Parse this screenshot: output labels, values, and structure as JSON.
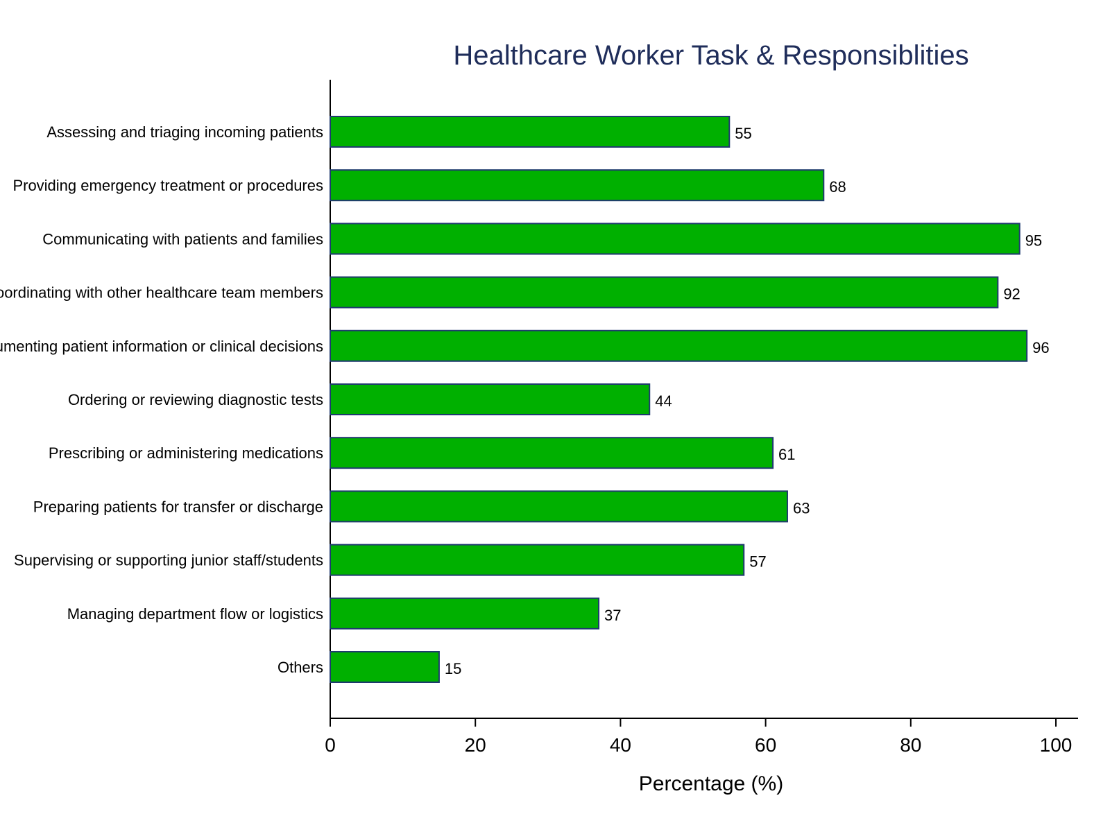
{
  "chart_data": {
    "type": "bar",
    "orientation": "horizontal",
    "title": "Healthcare Worker Task & Responsiblities",
    "xlabel": "Percentage (%)",
    "ylabel": "",
    "xlim": [
      0,
      100
    ],
    "x_ticks": [
      0,
      20,
      40,
      60,
      80,
      100
    ],
    "grid": false,
    "categories": [
      "Assessing and triaging incoming patients",
      "Providing emergency treatment or procedures",
      "Communicating with patients and families",
      "Coordinating with other healthcare team members",
      "Documenting patient information or clinical decisions",
      "Ordering or reviewing diagnostic tests",
      "Prescribing or administering medications",
      "Preparing patients for transfer or discharge",
      "Supervising or supporting junior staff/students",
      "Managing department flow or logistics",
      "Others"
    ],
    "values": [
      55,
      68,
      95,
      92,
      96,
      44,
      61,
      63,
      57,
      37,
      15
    ],
    "value_labels": [
      "55",
      "68",
      "95",
      "92",
      "96",
      "44",
      "61",
      "63",
      "57",
      "37",
      "15"
    ],
    "colors": {
      "bar_fill": "#00b000",
      "bar_stroke": "#1f3a6e",
      "title": "#1f2d5a",
      "axis": "#000000"
    }
  }
}
